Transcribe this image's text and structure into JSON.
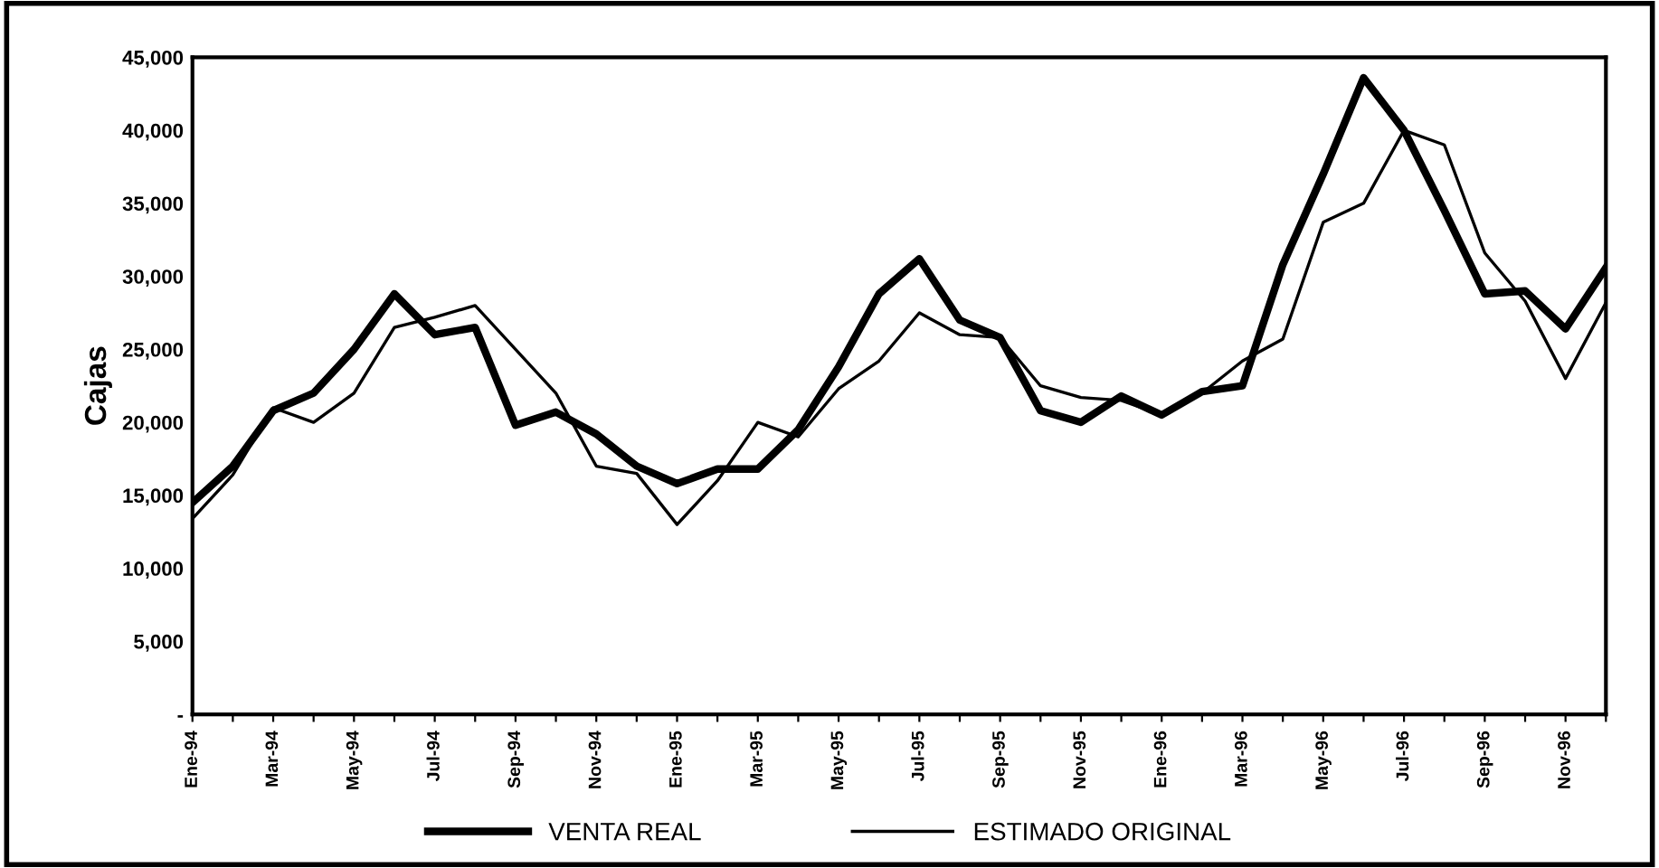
{
  "chart_data": {
    "type": "line",
    "ylabel": "Cajas",
    "categories": [
      "Ene-94",
      null,
      "Mar-94",
      null,
      "May-94",
      null,
      "Jul-94",
      null,
      "Sep-94",
      null,
      "Nov-94",
      null,
      "Ene-95",
      null,
      "Mar-95",
      null,
      "May-95",
      null,
      "Jul-95",
      null,
      "Sep-95",
      null,
      "Nov-95",
      null,
      "Ene-96",
      null,
      "Mar-96",
      null,
      "May-96",
      null,
      "Jul-96",
      null,
      "Sep-96",
      null,
      "Nov-96",
      null
    ],
    "series": [
      {
        "name": "VENTA REAL",
        "color": "#000000",
        "values": [
          14500,
          17000,
          20800,
          22000,
          25000,
          28800,
          26000,
          26500,
          19800,
          20700,
          19200,
          17000,
          15800,
          16800,
          16800,
          19500,
          23800,
          28800,
          31200,
          27000,
          25800,
          20800,
          20000,
          21800,
          20500,
          22100,
          22500,
          30800,
          37000,
          43600,
          40000,
          34500,
          28800,
          29000,
          26400,
          30600
        ]
      },
      {
        "name": "ESTIMADO ORIGINAL",
        "color": "#000000",
        "values": [
          13400,
          16400,
          21000,
          20000,
          22000,
          26500,
          27200,
          28000,
          25000,
          22000,
          17000,
          16500,
          13000,
          16000,
          20000,
          19000,
          22300,
          24200,
          27500,
          26000,
          25800,
          22500,
          21700,
          21500,
          20500,
          22000,
          24200,
          25700,
          33700,
          35000,
          40000,
          39000,
          31600,
          28300,
          23000,
          28200
        ]
      }
    ],
    "ylim": [
      0,
      45000
    ],
    "yticks": [
      {
        "value": 0,
        "label": "-"
      },
      {
        "value": 5000,
        "label": "5,000"
      },
      {
        "value": 10000,
        "label": "10,000"
      },
      {
        "value": 15000,
        "label": "15,000"
      },
      {
        "value": 20000,
        "label": "20,000"
      },
      {
        "value": 25000,
        "label": "25,000"
      },
      {
        "value": 30000,
        "label": "30,000"
      },
      {
        "value": 35000,
        "label": "35,000"
      },
      {
        "value": 40000,
        "label": "40,000"
      },
      {
        "value": 45000,
        "label": "45,000"
      }
    ],
    "grid": false,
    "legend": "bottom",
    "marker": "none",
    "line_style": "solid"
  }
}
